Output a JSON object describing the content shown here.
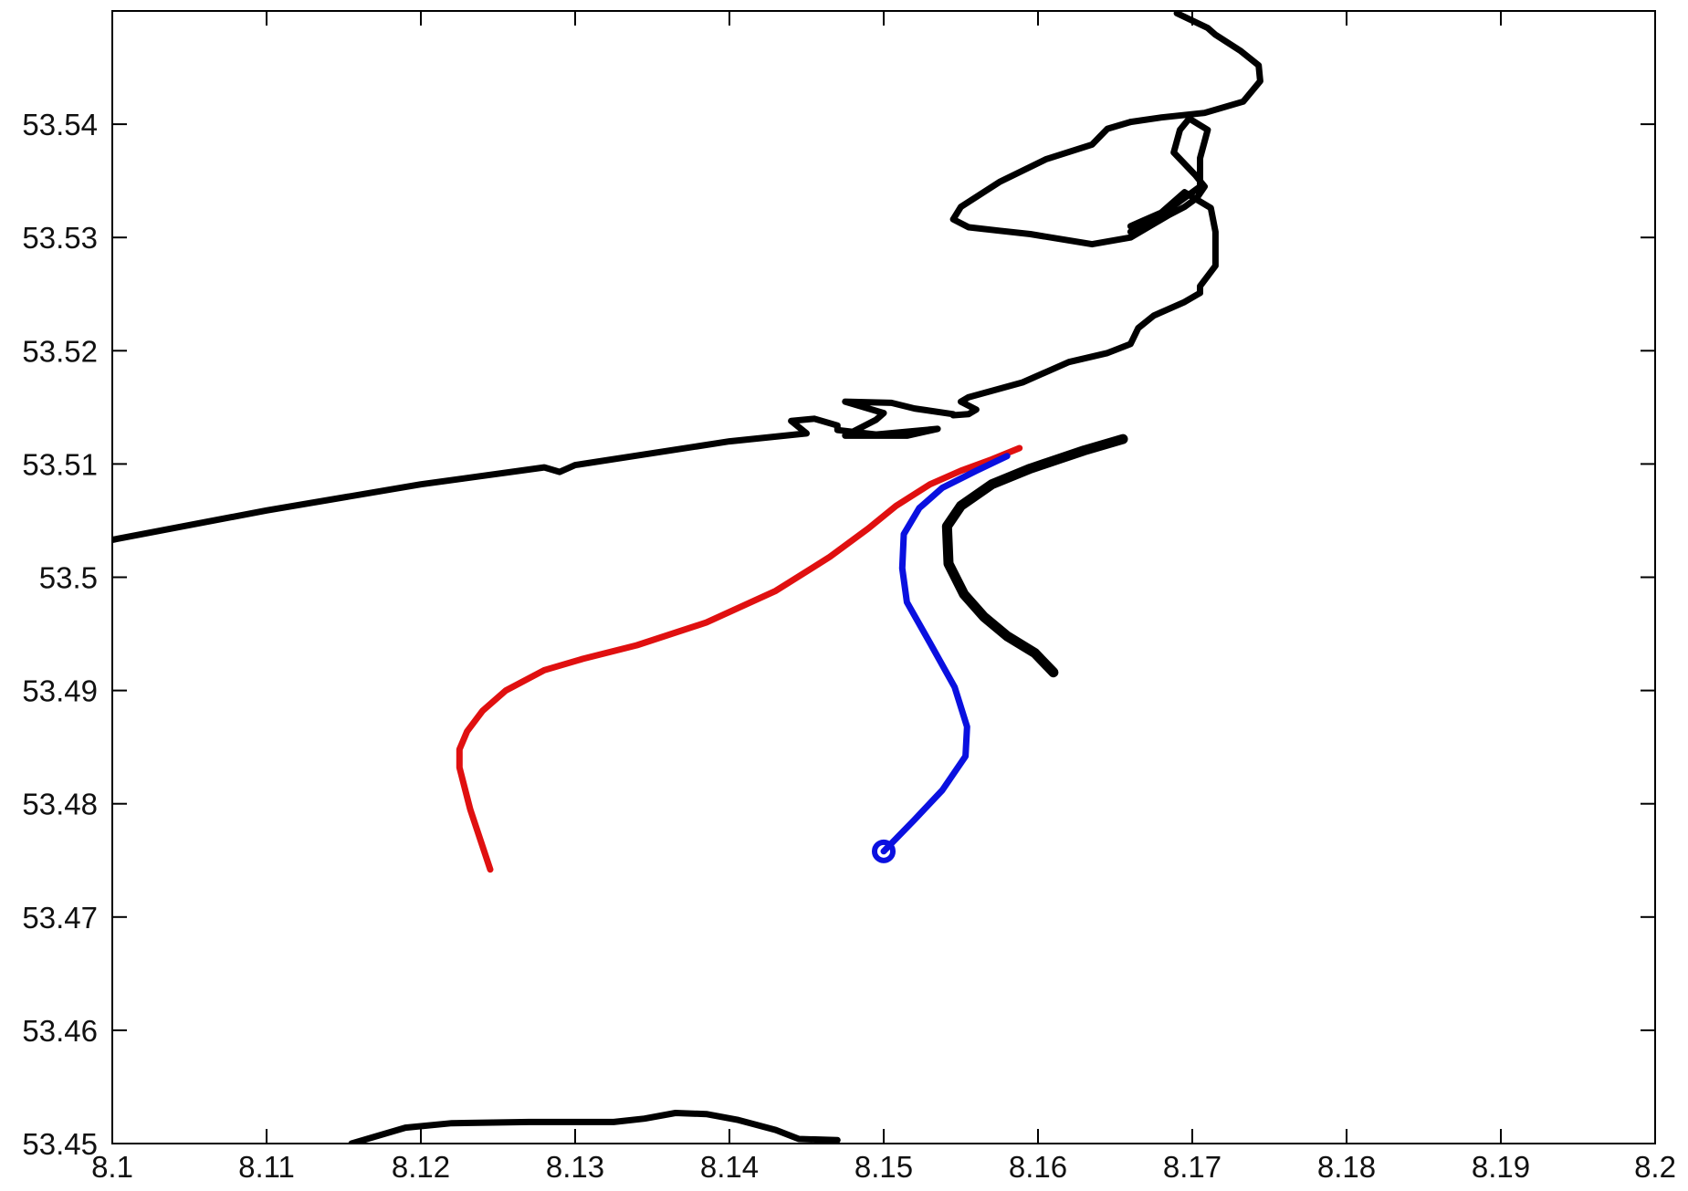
{
  "chart_data": {
    "type": "line",
    "title": "",
    "xlabel": "",
    "ylabel": "",
    "xlim": [
      8.1,
      8.2
    ],
    "ylim": [
      53.45,
      53.55
    ],
    "grid": false,
    "x_ticks": [
      "8.1",
      "8.11",
      "8.12",
      "8.13",
      "8.14",
      "8.15",
      "8.16",
      "8.17",
      "8.18",
      "8.19",
      "8.2"
    ],
    "y_ticks": [
      "53.45",
      "53.46",
      "53.47",
      "53.48",
      "53.49",
      "53.5",
      "53.51",
      "53.52",
      "53.53",
      "53.54"
    ],
    "colors": {
      "coastline": "#000000",
      "track_red": "#e01010",
      "track_blue": "#0a10e0"
    },
    "series": [
      {
        "role": "coastline-north",
        "color": "#000000",
        "width": 7,
        "x": [
          8.1,
          8.11,
          8.12,
          8.128,
          8.129,
          8.13,
          8.14,
          8.145,
          8.144,
          8.1455,
          8.147,
          8.147,
          8.1495,
          8.1535,
          8.1515,
          8.1475,
          8.1495,
          8.15,
          8.1475,
          8.1505,
          8.152,
          8.1545,
          8.1545,
          8.1555,
          8.156,
          8.155,
          8.1555,
          8.159,
          8.162,
          8.1645,
          8.166,
          8.1665,
          8.1675,
          8.1695,
          8.1705,
          8.1705,
          8.1715,
          8.1715,
          8.1712,
          8.1695,
          8.168,
          8.1665,
          8.166,
          8.166
        ],
        "y": [
          53.5033,
          53.5059,
          53.5082,
          53.5097,
          53.5093,
          53.5099,
          53.512,
          53.5127,
          53.5138,
          53.514,
          53.5134,
          53.513,
          53.5126,
          53.5131,
          53.5125,
          53.5125,
          53.5139,
          53.5145,
          53.5155,
          53.5154,
          53.5149,
          53.5144,
          53.5143,
          53.5144,
          53.5148,
          53.5155,
          53.5159,
          53.5172,
          53.519,
          53.5198,
          53.5206,
          53.522,
          53.5231,
          53.5243,
          53.5251,
          53.5257,
          53.5275,
          53.5305,
          53.5326,
          53.534,
          53.5322,
          53.5313,
          53.531,
          53.531
        ]
      },
      {
        "role": "coastline-island-loop",
        "color": "#000000",
        "width": 7,
        "x": [
          8.166,
          8.169,
          8.1705,
          8.1705,
          8.171,
          8.1698,
          8.1692,
          8.1688,
          8.1702,
          8.1708,
          8.1703,
          8.1695,
          8.1685,
          8.166,
          8.1635,
          8.1595,
          8.1575,
          8.1555,
          8.1545,
          8.155,
          8.1575,
          8.1605,
          8.1635,
          8.1645,
          8.166
        ],
        "y": [
          53.5305,
          53.533,
          53.5345,
          53.537,
          53.5395,
          53.5405,
          53.5395,
          53.5375,
          53.5355,
          53.5345,
          53.5335,
          53.5327,
          53.532,
          53.53,
          53.5294,
          53.5303,
          53.5306,
          53.5309,
          53.5316,
          53.5327,
          53.5349,
          53.5369,
          53.5382,
          53.5396,
          53.5402
        ]
      },
      {
        "role": "coastline-top",
        "color": "#000000",
        "width": 7,
        "x": [
          8.166,
          8.168,
          8.1708,
          8.1733,
          8.1744,
          8.1743,
          8.1731,
          8.1715,
          8.171,
          8.169
        ],
        "y": [
          53.5402,
          53.5406,
          53.541,
          53.542,
          53.5438,
          53.5452,
          53.5465,
          53.5479,
          53.5485,
          53.5498
        ]
      },
      {
        "role": "sandbank",
        "color": "#000000",
        "width": 11,
        "x": [
          8.1655,
          8.163,
          8.1595,
          8.157,
          8.155,
          8.1541,
          8.1542,
          8.1552,
          8.1565,
          8.158,
          8.1598,
          8.161
        ],
        "y": [
          53.5122,
          53.5112,
          53.5096,
          53.5082,
          53.5063,
          53.5045,
          53.5012,
          53.4985,
          53.4965,
          53.4948,
          53.4933,
          53.4916
        ]
      },
      {
        "role": "coastline-south",
        "color": "#000000",
        "width": 7,
        "x": [
          8.1155,
          8.119,
          8.122,
          8.127,
          8.1325,
          8.1345,
          8.1365,
          8.1385,
          8.1405,
          8.143,
          8.1445,
          8.147
        ],
        "y": [
          53.45,
          53.4514,
          53.4518,
          53.4519,
          53.4519,
          53.4522,
          53.4527,
          53.4526,
          53.4521,
          53.4512,
          53.4504,
          53.4503
        ]
      },
      {
        "role": "track-red",
        "color": "#e01010",
        "width": 7,
        "x": [
          8.1588,
          8.157,
          8.155,
          8.153,
          8.1508,
          8.149,
          8.1465,
          8.143,
          8.1385,
          8.134,
          8.1305,
          8.128,
          8.1255,
          8.124,
          8.123,
          8.1225,
          8.1225,
          8.1232,
          8.1245
        ],
        "y": [
          53.5114,
          53.5104,
          53.5094,
          53.5082,
          53.5063,
          53.5043,
          53.5018,
          53.4988,
          53.496,
          53.494,
          53.4928,
          53.4918,
          53.49,
          53.4882,
          53.4864,
          53.4848,
          53.4832,
          53.4795,
          53.4742
        ]
      },
      {
        "role": "track-blue",
        "color": "#0a10e0",
        "width": 7,
        "x": [
          8.158,
          8.156,
          8.1538,
          8.1523,
          8.1513,
          8.1512,
          8.1515,
          8.153,
          8.1546,
          8.1554,
          8.1553,
          8.1538,
          8.152,
          8.15
        ],
        "y": [
          53.5107,
          53.5094,
          53.5079,
          53.5061,
          53.5038,
          53.5008,
          53.4978,
          53.4942,
          53.4903,
          53.4868,
          53.4842,
          53.4812,
          53.4786,
          53.4758
        ]
      }
    ],
    "markers": [
      {
        "role": "start-marker",
        "color": "#0a10e0",
        "x": 8.15,
        "y": 53.4758
      }
    ]
  }
}
